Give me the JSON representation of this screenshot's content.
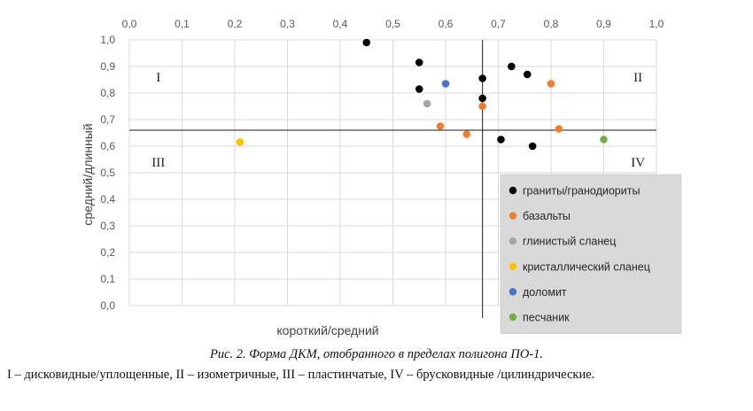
{
  "chart_data": {
    "type": "scatter",
    "xlabel": "короткий/средний",
    "ylabel": "средний/длинный",
    "xlim": [
      0,
      1
    ],
    "ylim": [
      0,
      1
    ],
    "x_ticks": [
      "0,0",
      "0,1",
      "0,2",
      "0,3",
      "0,4",
      "0,5",
      "0,6",
      "0,7",
      "0,8",
      "0,9",
      "1,0"
    ],
    "y_ticks": [
      "0,0",
      "0,1",
      "0,2",
      "0,3",
      "0,4",
      "0,5",
      "0,6",
      "0,7",
      "0,8",
      "0,9",
      "1,0"
    ],
    "x_axis_position": "top",
    "grid": true,
    "reference_lines": {
      "x": 0.67,
      "y": 0.66
    },
    "quadrant_labels": [
      "I",
      "II",
      "III",
      "IV"
    ],
    "legend_position": "bottom-right",
    "series": [
      {
        "name": "граниты/гранодиориты",
        "color": "#000000",
        "points": [
          [
            0.45,
            0.99
          ],
          [
            0.55,
            0.915
          ],
          [
            0.55,
            0.815
          ],
          [
            0.67,
            0.855
          ],
          [
            0.67,
            0.78
          ],
          [
            0.725,
            0.9
          ],
          [
            0.755,
            0.87
          ],
          [
            0.705,
            0.625
          ],
          [
            0.765,
            0.6
          ]
        ]
      },
      {
        "name": "базальты",
        "color": "#ED7D31",
        "points": [
          [
            0.8,
            0.835
          ],
          [
            0.67,
            0.75
          ],
          [
            0.59,
            0.675
          ],
          [
            0.64,
            0.645
          ],
          [
            0.815,
            0.665
          ]
        ]
      },
      {
        "name": "глинистый сланец",
        "color": "#A5A5A5",
        "points": [
          [
            0.565,
            0.76
          ]
        ]
      },
      {
        "name": "кристаллический сланец",
        "color": "#FFC000",
        "points": [
          [
            0.21,
            0.615
          ]
        ]
      },
      {
        "name": "доломит",
        "color": "#4472C4",
        "points": [
          [
            0.6,
            0.835
          ]
        ]
      },
      {
        "name": "песчаник",
        "color": "#70AD47",
        "points": [
          [
            0.9,
            0.625
          ]
        ]
      }
    ]
  },
  "caption": "Рис. 2. Форма ДКМ, отобранного в пределах полигона ПО-1.",
  "note": "I – дисковидные/уплощенные, II – изометричные, III – пластинчатые, IV – брусковидные /цилиндрические."
}
